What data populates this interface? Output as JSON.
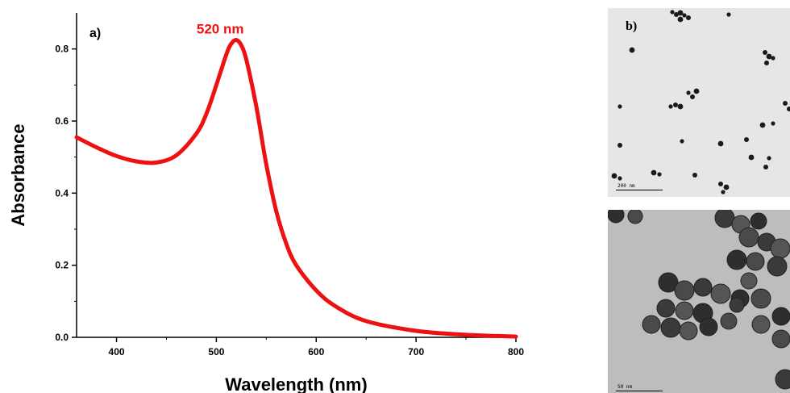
{
  "chart_data": {
    "type": "line",
    "panel_label": "a)",
    "xlabel": "Wavelength (nm)",
    "ylabel": "Absorbance",
    "xlim": [
      360,
      800
    ],
    "ylim": [
      0,
      0.9
    ],
    "xticks": [
      400,
      500,
      600,
      700,
      800
    ],
    "yticks": [
      0.0,
      0.2,
      0.4,
      0.6,
      0.8
    ],
    "annotation": {
      "text": "520 nm",
      "x": 520,
      "y": 0.83,
      "color": "#ee1111"
    },
    "series": [
      {
        "color": "#ee1111",
        "x": [
          360,
          380,
          400,
          420,
          440,
          460,
          480,
          490,
          500,
          510,
          515,
          520,
          525,
          530,
          540,
          550,
          560,
          570,
          580,
          600,
          620,
          650,
          700,
          750,
          800
        ],
        "y": [
          0.555,
          0.527,
          0.503,
          0.488,
          0.485,
          0.505,
          0.565,
          0.62,
          0.7,
          0.785,
          0.815,
          0.825,
          0.81,
          0.77,
          0.64,
          0.48,
          0.35,
          0.26,
          0.2,
          0.13,
          0.085,
          0.045,
          0.018,
          0.007,
          0.002
        ]
      }
    ]
  },
  "tem_images": [
    {
      "label": "b)",
      "scale_bar": "200 nm",
      "bg": "#e6e6e6"
    },
    {
      "label": "",
      "scale_bar": "50 nm",
      "bg": "#bdbdbd"
    }
  ]
}
